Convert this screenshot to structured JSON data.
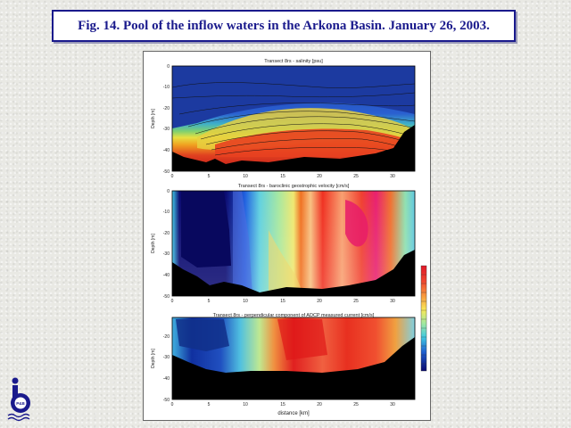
{
  "slide": {
    "title": "Fig. 14. Pool of the inflow waters in the Arkona Basin. January 26, 2003."
  },
  "logo": {
    "icon": "institute-logo-icon",
    "badge_text": "P&B"
  },
  "colors": {
    "title_border": "#1a1a8c",
    "title_text": "#1a1a8c"
  },
  "chart_data": [
    {
      "type": "heatmap",
      "title": "Transect 8rs - salinity [psu]",
      "ylabel": "Depth [m]",
      "xlabel": "",
      "xlim": [
        0,
        33
      ],
      "ylim": [
        -50,
        0
      ],
      "x_ticks": [
        "0",
        "5",
        "10",
        "15",
        "20",
        "25",
        "30"
      ],
      "y_ticks": [
        "0",
        "-10",
        "-20",
        "-30",
        "-40",
        "-50"
      ]
    },
    {
      "type": "heatmap",
      "title": "Transect 8rs - baroclinic geostrophic velocity [cm/s]",
      "ylabel": "Depth [m]",
      "xlabel": "",
      "xlim": [
        0,
        33
      ],
      "ylim": [
        -50,
        0
      ],
      "x_ticks": [
        "0",
        "5",
        "10",
        "15",
        "20",
        "25",
        "30"
      ],
      "y_ticks": [
        "0",
        "-10",
        "-20",
        "-30",
        "-40",
        "-50"
      ]
    },
    {
      "type": "heatmap",
      "title": "Transect 8rs - perpendicular component of ADCP measured current [cm/s]",
      "ylabel": "Depth [m]",
      "xlabel": "distance [km]",
      "xlim": [
        0,
        33
      ],
      "ylim": [
        -50,
        -10
      ],
      "x_ticks": [
        "0",
        "5",
        "10",
        "15",
        "20",
        "25",
        "30"
      ],
      "y_ticks": [
        "-20",
        "-30",
        "-40",
        "-50"
      ]
    }
  ]
}
